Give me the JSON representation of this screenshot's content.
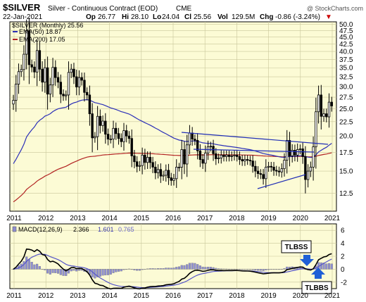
{
  "header": {
    "symbol": "$SILVER",
    "description": "Silver - Continuous Contract (EOD)",
    "exchange": "CME",
    "watermark": "@ StockCharts.com",
    "date": "22-Jan-2021",
    "op_label": "Op",
    "op": "26.77",
    "hi_label": "Hi",
    "hi": "28.10",
    "lo_label": "Lo",
    "lo": "24.04",
    "cl_label": "Cl",
    "cl": "25.56",
    "vol_label": "Vol",
    "vol": "129.5M",
    "chg_label": "Chg",
    "chg": "-0.86 (-3.24%)",
    "chg_arrow": "▼"
  },
  "colors": {
    "panel_bg": "#fcfbd5",
    "grid": "#c9c69a",
    "candle": "#000000",
    "ema50": "#2b2fb8",
    "ema200": "#b22222",
    "trendline": "#1f2db5",
    "macd_line": "#000000",
    "signal_line": "#5555c8",
    "histogram": "#8e8ed0",
    "callout_arrow": "#1f5fd6"
  },
  "chart_data": [
    {
      "type": "candlestick",
      "title": "$SILVER (Monthly) 25.56",
      "x_axis": {
        "ticks": [
          "2011",
          "2012",
          "2013",
          "2014",
          "2015",
          "2016",
          "2017",
          "2018",
          "2019",
          "2020",
          "2021"
        ]
      },
      "y_axis": {
        "scale": "log",
        "ticks": [
          "12.5",
          "15.0",
          "17.5",
          "20.0",
          "22.5",
          "25.0",
          "27.5",
          "30.0",
          "32.5",
          "35.0",
          "37.5",
          "40.0",
          "42.5",
          "45.0",
          "47.5",
          "50.0"
        ],
        "ylim": [
          10.8,
          51
        ]
      },
      "legend": [
        {
          "label": "$SILVER (Monthly)",
          "value": "25.56"
        },
        {
          "label": "EMA(50)",
          "value": "18.87",
          "color": "#2b2fb8"
        },
        {
          "label": "EMA(200)",
          "value": "17.05",
          "color": "#b22222"
        }
      ],
      "series_ohlc_close": [
        26.8,
        30.6,
        33.9,
        34.5,
        39.1,
        47.4,
        35.9,
        35.2,
        33.8,
        40.3,
        34.6,
        31.1,
        35.0,
        28.2,
        30.4,
        35.1,
        32.3,
        31.1,
        28.2,
        27.8,
        28.0,
        33.7,
        34.6,
        32.5,
        29.9,
        32.3,
        31.6,
        28.6,
        28.0,
        24.0,
        19.7,
        19.9,
        23.5,
        21.8,
        22.6,
        20.3,
        19.5,
        19.5,
        21.3,
        20.4,
        19.6,
        19.1,
        20.9,
        20.0,
        19.6,
        17.0,
        16.2,
        15.6,
        15.7,
        17.1,
        16.1,
        16.8,
        16.1,
        15.5,
        14.8,
        15.2,
        14.4,
        14.5,
        15.1,
        14.2,
        13.9,
        14.1,
        15.5,
        15.5,
        17.9,
        15.9,
        18.6,
        20.5,
        19.5,
        19.3,
        17.7,
        16.5,
        16.0,
        17.4,
        18.3,
        18.4,
        17.3,
        16.6,
        16.7,
        17.1,
        16.9,
        17.1,
        16.9,
        17.0,
        17.1,
        16.9,
        16.5,
        16.3,
        16.5,
        16.4,
        16.3,
        15.6,
        15.0,
        14.7,
        14.6,
        14.1,
        15.5,
        15.6,
        15.5,
        15.1,
        15.0,
        14.9,
        15.3,
        16.4,
        19.3,
        17.0,
        17.8,
        17.1,
        17.9,
        18.0,
        16.9,
        14.0,
        15.0,
        15.5,
        18.3,
        24.4,
        28.0,
        23.5,
        24.0,
        23.4,
        26.4,
        25.6
      ],
      "ema50": "18.87",
      "ema200": "17.05"
    },
    {
      "type": "line",
      "title": "MACD(12,26,9)",
      "series": [
        {
          "name": "MACD(12,26,9)",
          "last": "2.366",
          "color": "#000000"
        },
        {
          "name": "Signal",
          "last": "1.601",
          "color": "#5555c8"
        },
        {
          "name": "Histogram",
          "last": "0.765",
          "color": "#8e8ed0"
        }
      ],
      "x_axis": {
        "ticks": [
          "2011",
          "2012",
          "2013",
          "2014",
          "2015",
          "2016",
          "2017",
          "2018",
          "2019",
          "2020",
          "2021"
        ]
      },
      "y_axis": {
        "ticks": [
          "-2",
          "0",
          "2",
          "4",
          "6"
        ],
        "ylim": [
          -3,
          7
        ]
      },
      "annotations": [
        {
          "label": "TLBSS"
        },
        {
          "label": "TLBBS"
        }
      ]
    }
  ]
}
